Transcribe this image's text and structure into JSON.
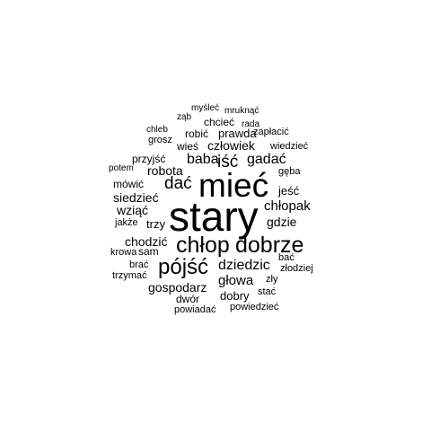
{
  "word_cloud": {
    "text_color": "#000000",
    "background_color": "#ffffff",
    "words": [
      {
        "text": "stary",
        "weight": 100
      },
      {
        "text": "mieć",
        "weight": 80
      },
      {
        "text": "chłop",
        "weight": 54
      },
      {
        "text": "dobrze",
        "weight": 54
      },
      {
        "text": "pójść",
        "weight": 52
      },
      {
        "text": "dać",
        "weight": 40
      },
      {
        "text": "iść",
        "weight": 40
      },
      {
        "text": "baba",
        "weight": 34
      },
      {
        "text": "gadać",
        "weight": 34
      },
      {
        "text": "dziedzic",
        "weight": 34
      },
      {
        "text": "chłopak",
        "weight": 32
      },
      {
        "text": "głowa",
        "weight": 32
      },
      {
        "text": "gospodarz",
        "weight": 30
      },
      {
        "text": "siedzieć",
        "weight": 30
      },
      {
        "text": "wziąć",
        "weight": 30
      },
      {
        "text": "gdzie",
        "weight": 30
      },
      {
        "text": "człowiek",
        "weight": 30
      },
      {
        "text": "robota",
        "weight": 30
      },
      {
        "text": "chodzić",
        "weight": 30
      },
      {
        "text": "dobry",
        "weight": 28
      },
      {
        "text": "prawda",
        "weight": 28
      },
      {
        "text": "trzy",
        "weight": 28
      },
      {
        "text": "jeść",
        "weight": 28
      },
      {
        "text": "mówić",
        "weight": 26
      },
      {
        "text": "robić",
        "weight": 26
      },
      {
        "text": "przyjść",
        "weight": 26
      },
      {
        "text": "wieś",
        "weight": 26
      },
      {
        "text": "dwór",
        "weight": 26
      },
      {
        "text": "chcieć",
        "weight": 25
      },
      {
        "text": "sam",
        "weight": 25
      },
      {
        "text": "grosz",
        "weight": 23
      },
      {
        "text": "jakże",
        "weight": 23
      },
      {
        "text": "krowa",
        "weight": 23
      },
      {
        "text": "brać",
        "weight": 23
      },
      {
        "text": "trzymać",
        "weight": 23
      },
      {
        "text": "zapłacić",
        "weight": 23
      },
      {
        "text": "wiedzieć",
        "weight": 23
      },
      {
        "text": "gęba",
        "weight": 23
      },
      {
        "text": "bać",
        "weight": 23
      },
      {
        "text": "złodziej",
        "weight": 23
      },
      {
        "text": "zły",
        "weight": 23
      },
      {
        "text": "stać",
        "weight": 23
      },
      {
        "text": "powiadać",
        "weight": 23
      },
      {
        "text": "powiedzieć",
        "weight": 23
      },
      {
        "text": "myśleć",
        "weight": 22
      },
      {
        "text": "mruknąć",
        "weight": 22
      },
      {
        "text": "ząb",
        "weight": 22
      },
      {
        "text": "rada",
        "weight": 22
      },
      {
        "text": "chleb",
        "weight": 22
      },
      {
        "text": "potem",
        "weight": 22
      }
    ]
  }
}
